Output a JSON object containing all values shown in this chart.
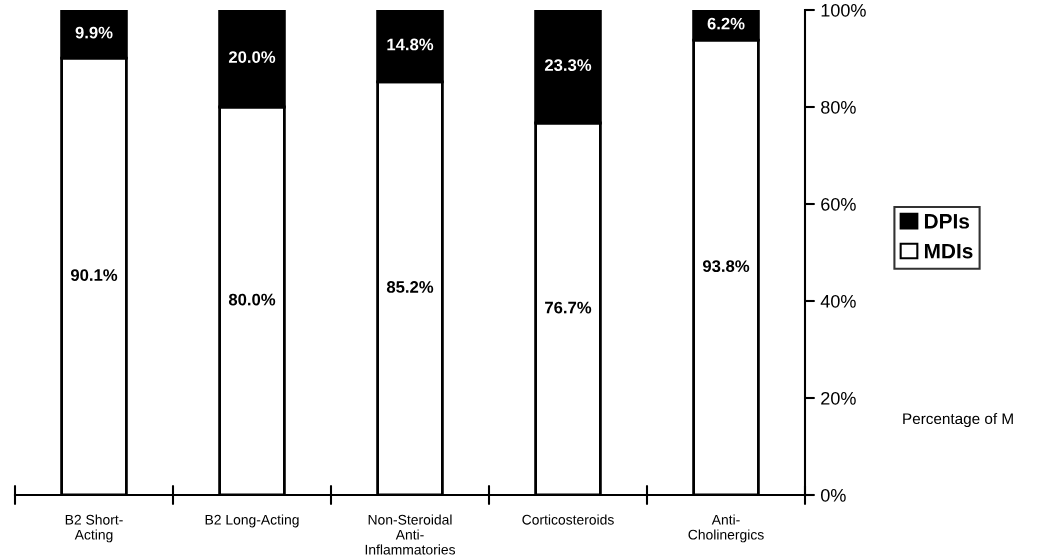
{
  "chart_data": {
    "type": "bar",
    "stacked": true,
    "categories": [
      "B2 Short-\nActing",
      "B2 Long-Acting",
      "Non-Steroidal\nAnti-\nInflammatories",
      "Corticosteroids",
      "Anti-\nCholinergics"
    ],
    "series": [
      {
        "name": "MDIs",
        "color": "#ffffff",
        "values": [
          90.1,
          80.0,
          85.2,
          76.7,
          93.8
        ],
        "value_labels": [
          "90.1%",
          "80.0%",
          "85.2%",
          "76.7%",
          "93.8%"
        ]
      },
      {
        "name": "DPIs",
        "color": "#000000",
        "values": [
          9.9,
          20.0,
          14.8,
          23.3,
          6.2
        ],
        "value_labels": [
          "9.9%",
          "20.0%",
          "14.8%",
          "23.3%",
          "6.2%"
        ]
      }
    ],
    "ylim": [
      0,
      100
    ],
    "yticks": [
      {
        "value": 0,
        "label": "0%"
      },
      {
        "value": 20,
        "label": "20%"
      },
      {
        "value": 40,
        "label": "40%"
      },
      {
        "value": 60,
        "label": "60%"
      },
      {
        "value": 80,
        "label": "80%"
      },
      {
        "value": 100,
        "label": "100%"
      }
    ],
    "ylabel": "Percentage of M",
    "legend": "right",
    "grid": false
  }
}
